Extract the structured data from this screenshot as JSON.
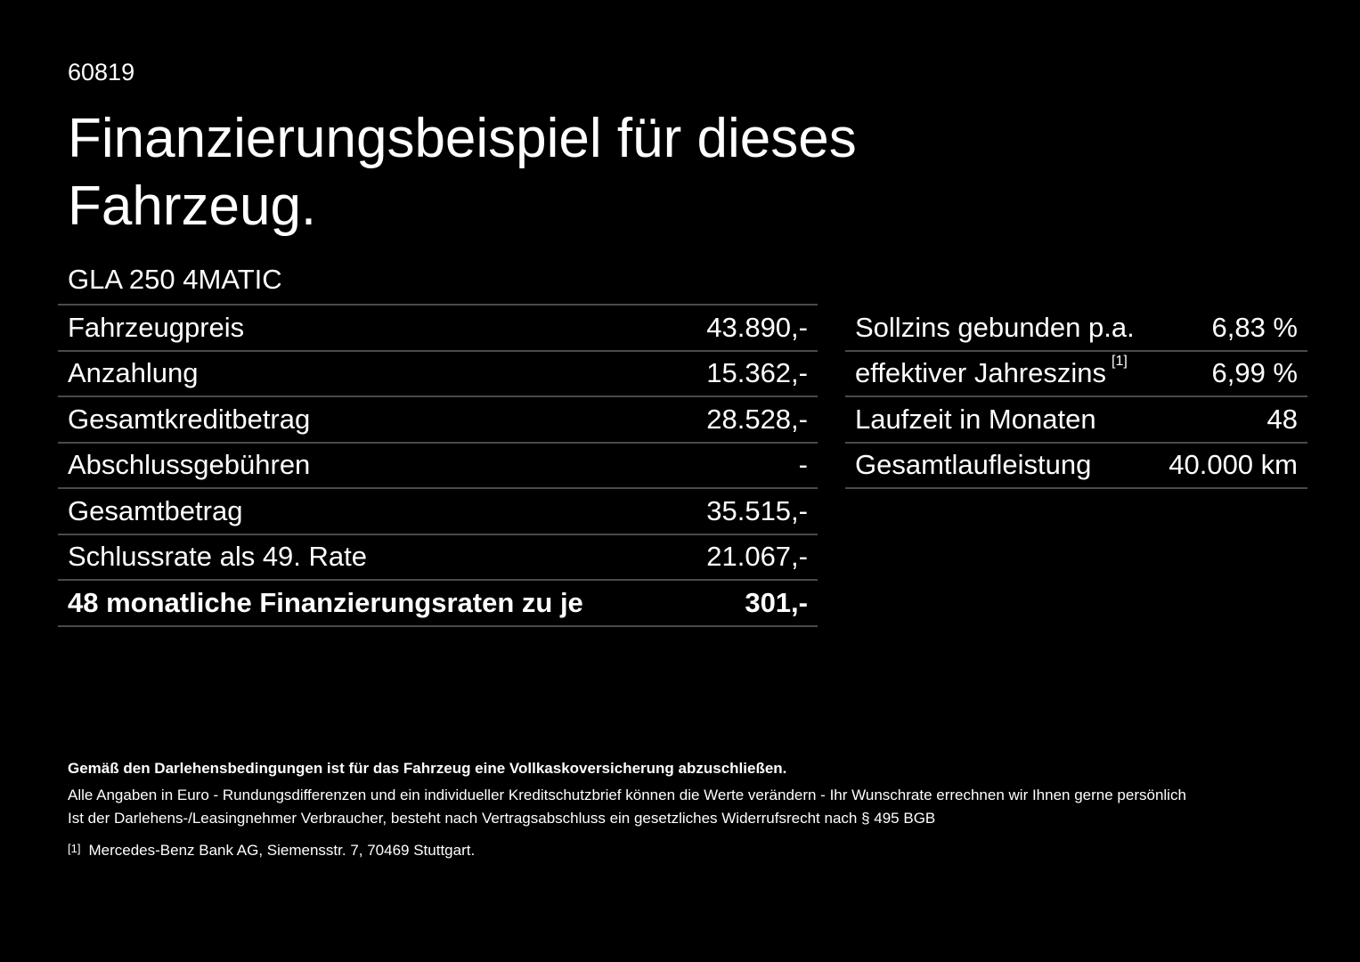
{
  "header": {
    "code": "60819",
    "title": "Finanzierungsbeispiel für dieses Fahrzeug."
  },
  "model": "GLA 250 4MATIC",
  "left_table": {
    "rows": [
      {
        "label": "Fahrzeugpreis",
        "value": "43.890,-"
      },
      {
        "label": "Anzahlung",
        "value": "15.362,-"
      },
      {
        "label": "Gesamtkreditbetrag",
        "value": "28.528,-"
      },
      {
        "label": "Abschlussgebühren",
        "value": "-"
      },
      {
        "label": "Gesamtbetrag",
        "value": "35.515,-"
      },
      {
        "label": "Schlussrate als 49. Rate",
        "value": "21.067,-"
      },
      {
        "label": "48 monatliche Finanzierungsraten zu je",
        "value": "301,-"
      }
    ]
  },
  "right_table": {
    "rows": [
      {
        "label": "Sollzins gebunden p.a.",
        "value": "6,83 %"
      },
      {
        "label": "effektiver Jahreszins",
        "ref": "[1]",
        "value": "6,99 %"
      },
      {
        "label": "Laufzeit in Monaten",
        "value": "48"
      },
      {
        "label": "Gesamtlaufleistung",
        "value": "40.000 km"
      }
    ]
  },
  "footer": {
    "notice": "Gemäß den Darlehensbedingungen ist für das Fahrzeug eine Vollkaskoversicherung abzuschließen.",
    "lines": [
      "Alle Angaben in Euro - Rundungsdifferenzen und ein individueller Kreditschutzbrief können die Werte verändern - Ihr Wunschrate errechnen wir Ihnen gerne persönlich",
      "Ist der Darlehens-/Leasingnehmer Verbraucher, besteht nach Vertragsabschluss ein gesetzliches Widerrufsrecht nach § 495 BGB"
    ],
    "footnote": {
      "ref": "[1]",
      "text": "Mercedes-Benz Bank AG, Siemensstr. 7, 70469 Stuttgart."
    }
  }
}
